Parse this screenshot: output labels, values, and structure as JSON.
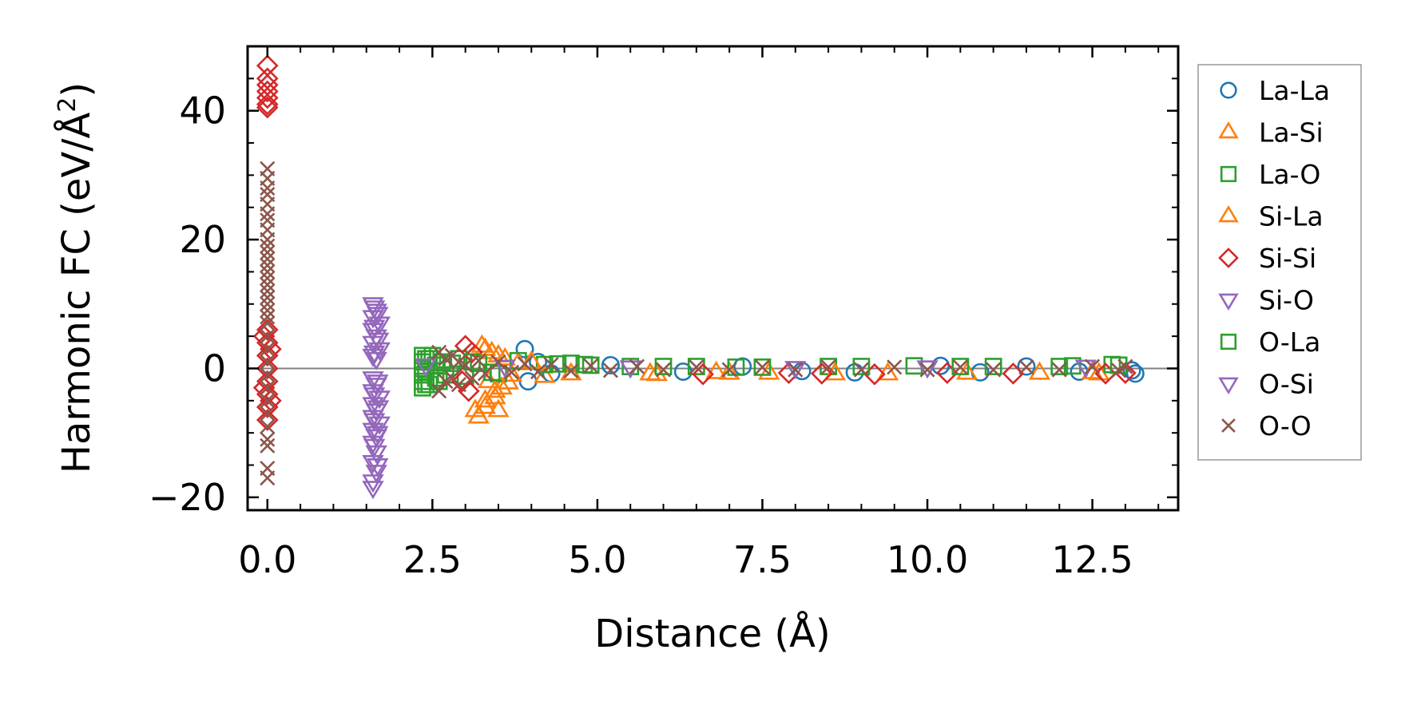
{
  "chart_data": {
    "type": "scatter",
    "xlabel": "Distance (Å)",
    "ylabel_main": "Harmonic FC (eV/Å",
    "ylabel_sup": "2",
    "ylabel_close": ")",
    "xlim": [
      -0.3,
      13.8
    ],
    "ylim": [
      -22,
      50
    ],
    "xticks": [
      0.0,
      2.5,
      5.0,
      7.5,
      10.0,
      12.5
    ],
    "xtick_labels": [
      "0.0",
      "2.5",
      "5.0",
      "7.5",
      "10.0",
      "12.5"
    ],
    "yticks": [
      -20,
      0,
      20,
      40
    ],
    "ytick_labels": [
      "−20",
      "0",
      "20",
      "40"
    ],
    "x_minor_step": 0.5,
    "y_minor_step": 5,
    "zero_line": true,
    "legend_position": "outside-right",
    "series": [
      {
        "name": "La-La",
        "marker": "circle",
        "color": "#1f77b4",
        "points": [
          [
            3.9,
            3.0
          ],
          [
            3.95,
            -2.0
          ],
          [
            4.1,
            1.0
          ],
          [
            4.3,
            -0.8
          ],
          [
            5.2,
            0.5
          ],
          [
            6.3,
            -0.5
          ],
          [
            7.2,
            0.3
          ],
          [
            8.1,
            -0.4
          ],
          [
            8.9,
            -0.6
          ],
          [
            10.2,
            0.4
          ],
          [
            10.8,
            -0.6
          ],
          [
            11.5,
            0.3
          ],
          [
            12.3,
            -0.5
          ],
          [
            13.1,
            -0.3
          ],
          [
            13.15,
            -0.8
          ]
        ]
      },
      {
        "name": "La-Si",
        "marker": "triangle-up",
        "color": "#ff7f0e",
        "points": [
          [
            3.2,
            -7.5
          ],
          [
            3.3,
            -6.0
          ],
          [
            3.45,
            -4.5
          ],
          [
            3.5,
            -6.5
          ],
          [
            3.35,
            -2.0
          ],
          [
            3.25,
            3.5
          ],
          [
            3.4,
            2.5
          ],
          [
            3.6,
            1.5
          ],
          [
            3.55,
            -3.0
          ],
          [
            3.7,
            -1.0
          ],
          [
            3.8,
            0.8
          ],
          [
            4.2,
            -1.2
          ],
          [
            5.8,
            -0.8
          ],
          [
            6.8,
            -0.6
          ],
          [
            7.6,
            -0.7
          ],
          [
            9.4,
            -0.8
          ],
          [
            11.7,
            -0.7
          ],
          [
            12.6,
            -0.8
          ]
        ]
      },
      {
        "name": "La-O",
        "marker": "square",
        "color": "#2ca02c",
        "points": [
          [
            2.35,
            -3.0
          ],
          [
            2.35,
            -2.0
          ],
          [
            2.35,
            -1.0
          ],
          [
            2.35,
            0.0
          ],
          [
            2.35,
            1.0
          ],
          [
            2.35,
            2.0
          ],
          [
            2.45,
            -2.5
          ],
          [
            2.45,
            1.5
          ],
          [
            2.55,
            -1.5
          ],
          [
            2.55,
            0.5
          ],
          [
            2.65,
            1.0
          ],
          [
            2.7,
            -1.0
          ],
          [
            2.9,
            1.5
          ],
          [
            3.0,
            -1.2
          ],
          [
            3.2,
            0.8
          ],
          [
            3.5,
            -0.8
          ],
          [
            3.8,
            1.2
          ],
          [
            4.2,
            0.6
          ],
          [
            4.6,
            0.8
          ],
          [
            4.9,
            0.5
          ],
          [
            5.5,
            0.3
          ],
          [
            6.5,
            0.3
          ],
          [
            7.5,
            0.2
          ],
          [
            8.5,
            0.3
          ],
          [
            9.8,
            0.4
          ],
          [
            11.0,
            0.3
          ],
          [
            12.0,
            0.3
          ],
          [
            12.8,
            0.6
          ]
        ]
      },
      {
        "name": "Si-La",
        "marker": "triangle-up",
        "color": "#ff7f0e",
        "points": [
          [
            3.15,
            -6.5
          ],
          [
            3.3,
            -5.0
          ],
          [
            3.45,
            -3.5
          ],
          [
            3.3,
            3.0
          ],
          [
            3.5,
            2.0
          ],
          [
            3.65,
            -2.2
          ],
          [
            4.0,
            1.0
          ],
          [
            4.6,
            -0.8
          ],
          [
            5.9,
            -0.9
          ],
          [
            7.0,
            -0.7
          ],
          [
            8.6,
            -0.8
          ],
          [
            10.6,
            -0.7
          ],
          [
            12.5,
            -0.6
          ]
        ]
      },
      {
        "name": "Si-Si",
        "marker": "diamond",
        "color": "#d62728",
        "points": [
          [
            0.0,
            47.0
          ],
          [
            0.0,
            45.0
          ],
          [
            0.0,
            44.0
          ],
          [
            0.0,
            43.0
          ],
          [
            0.0,
            42.0
          ],
          [
            0.0,
            41.0
          ],
          [
            0.0,
            40.5
          ],
          [
            0.0,
            6.0
          ],
          [
            0.0,
            4.0
          ],
          [
            0.0,
            2.0
          ],
          [
            0.0,
            0.0
          ],
          [
            0.0,
            -2.0
          ],
          [
            0.0,
            -4.0
          ],
          [
            0.0,
            -6.0
          ],
          [
            0.0,
            -8.0
          ],
          [
            -0.05,
            5.0
          ],
          [
            0.05,
            -5.0
          ],
          [
            -0.05,
            -3.0
          ],
          [
            0.05,
            3.0
          ],
          [
            3.0,
            3.5
          ],
          [
            3.05,
            -3.5
          ],
          [
            3.1,
            2.5
          ],
          [
            2.95,
            -2.0
          ],
          [
            6.6,
            -0.9
          ],
          [
            7.9,
            -0.7
          ],
          [
            8.4,
            -0.8
          ],
          [
            9.2,
            -0.9
          ],
          [
            10.3,
            -0.7
          ],
          [
            11.3,
            -0.8
          ],
          [
            12.7,
            -0.8
          ],
          [
            13.0,
            -0.7
          ]
        ]
      },
      {
        "name": "Si-O",
        "marker": "triangle-down",
        "color": "#9467bd",
        "points": [
          [
            1.6,
            10.0
          ],
          [
            1.65,
            9.0
          ],
          [
            1.6,
            8.0
          ],
          [
            1.7,
            7.0
          ],
          [
            1.6,
            6.0
          ],
          [
            1.65,
            5.0
          ],
          [
            1.6,
            4.0
          ],
          [
            1.7,
            3.0
          ],
          [
            1.6,
            2.0
          ],
          [
            1.65,
            1.5
          ],
          [
            1.6,
            -1.5
          ],
          [
            1.65,
            -2.5
          ],
          [
            1.6,
            -3.5
          ],
          [
            1.7,
            -4.5
          ],
          [
            1.6,
            -5.5
          ],
          [
            1.65,
            -6.5
          ],
          [
            1.6,
            -7.5
          ],
          [
            1.7,
            -8.5
          ],
          [
            1.6,
            -9.5
          ],
          [
            1.65,
            -10.5
          ],
          [
            1.6,
            -11.5
          ],
          [
            1.65,
            -13.0
          ],
          [
            1.6,
            -14.5
          ],
          [
            1.65,
            -16.0
          ],
          [
            1.6,
            -17.5
          ]
        ]
      },
      {
        "name": "O-La",
        "marker": "square",
        "color": "#2ca02c",
        "points": [
          [
            2.4,
            -2.5
          ],
          [
            2.4,
            -0.5
          ],
          [
            2.4,
            1.5
          ],
          [
            2.5,
            2.0
          ],
          [
            2.6,
            -2.0
          ],
          [
            2.8,
            0.8
          ],
          [
            3.1,
            1.0
          ],
          [
            3.4,
            -0.6
          ],
          [
            4.4,
            0.7
          ],
          [
            4.8,
            0.6
          ],
          [
            6.0,
            0.3
          ],
          [
            7.1,
            0.2
          ],
          [
            9.0,
            0.3
          ],
          [
            10.5,
            0.3
          ],
          [
            12.2,
            0.4
          ],
          [
            12.9,
            0.5
          ]
        ]
      },
      {
        "name": "O-Si",
        "marker": "triangle-down",
        "color": "#9467bd",
        "points": [
          [
            1.62,
            9.5
          ],
          [
            1.67,
            8.5
          ],
          [
            1.62,
            6.5
          ],
          [
            1.68,
            4.5
          ],
          [
            1.62,
            2.5
          ],
          [
            1.67,
            -2.0
          ],
          [
            1.62,
            -4.0
          ],
          [
            1.68,
            -6.0
          ],
          [
            1.62,
            -8.0
          ],
          [
            1.67,
            -10.0
          ],
          [
            1.62,
            -12.0
          ],
          [
            1.67,
            -15.0
          ],
          [
            1.6,
            -18.5
          ],
          [
            2.4,
            0.5
          ],
          [
            3.6,
            0.3
          ],
          [
            5.5,
            0.2
          ],
          [
            8.0,
            0.1
          ],
          [
            10.0,
            0.2
          ],
          [
            12.4,
            0.3
          ]
        ]
      },
      {
        "name": "O-O",
        "marker": "x",
        "color": "#8c564b",
        "points": [
          [
            0.0,
            31.0
          ],
          [
            0.0,
            29.5
          ],
          [
            0.0,
            28.0
          ],
          [
            0.0,
            27.0
          ],
          [
            0.0,
            25.5
          ],
          [
            0.0,
            24.0
          ],
          [
            0.0,
            23.0
          ],
          [
            0.0,
            21.5
          ],
          [
            0.0,
            20.0
          ],
          [
            0.0,
            19.0
          ],
          [
            0.0,
            18.0
          ],
          [
            0.0,
            17.0
          ],
          [
            0.0,
            16.0
          ],
          [
            0.0,
            15.0
          ],
          [
            0.0,
            14.0
          ],
          [
            0.0,
            13.0
          ],
          [
            0.0,
            12.0
          ],
          [
            0.0,
            11.0
          ],
          [
            0.0,
            10.0
          ],
          [
            0.0,
            9.0
          ],
          [
            0.0,
            8.0
          ],
          [
            0.0,
            7.0
          ],
          [
            0.0,
            5.0
          ],
          [
            0.0,
            3.0
          ],
          [
            0.0,
            1.0
          ],
          [
            0.0,
            -1.0
          ],
          [
            0.0,
            -3.0
          ],
          [
            0.0,
            -5.0
          ],
          [
            0.0,
            -7.0
          ],
          [
            0.0,
            -9.0
          ],
          [
            0.0,
            -11.0
          ],
          [
            0.0,
            -12.0
          ],
          [
            0.0,
            -15.5
          ],
          [
            0.0,
            -17.0
          ],
          [
            2.6,
            2.5
          ],
          [
            2.6,
            -3.5
          ],
          [
            2.7,
            1.5
          ],
          [
            2.7,
            -2.0
          ],
          [
            2.8,
            2.0
          ],
          [
            2.8,
            -1.5
          ],
          [
            2.9,
            1.0
          ],
          [
            2.9,
            -2.5
          ],
          [
            3.0,
            0.5
          ],
          [
            3.1,
            -1.5
          ],
          [
            3.2,
            1.2
          ],
          [
            3.3,
            -0.8
          ],
          [
            3.5,
            1.0
          ],
          [
            3.7,
            -0.6
          ],
          [
            3.9,
            0.7
          ],
          [
            4.1,
            -0.5
          ],
          [
            4.3,
            0.6
          ],
          [
            4.6,
            -0.4
          ],
          [
            4.9,
            0.4
          ],
          [
            5.2,
            -0.3
          ],
          [
            5.6,
            0.3
          ],
          [
            6.0,
            -0.2
          ],
          [
            6.5,
            0.2
          ],
          [
            7.0,
            -0.2
          ],
          [
            7.5,
            0.2
          ],
          [
            8.0,
            -0.2
          ],
          [
            8.5,
            0.2
          ],
          [
            9.0,
            -0.2
          ],
          [
            9.5,
            0.2
          ],
          [
            10.0,
            -0.2
          ],
          [
            10.5,
            0.2
          ],
          [
            11.0,
            -0.2
          ],
          [
            11.5,
            0.2
          ],
          [
            12.0,
            -0.2
          ],
          [
            12.5,
            0.3
          ],
          [
            12.9,
            -0.3
          ],
          [
            13.0,
            0.3
          ]
        ]
      }
    ]
  }
}
